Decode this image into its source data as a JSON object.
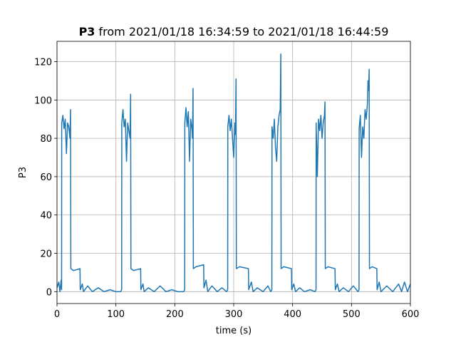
{
  "chart_data": {
    "type": "line",
    "title_parameter": "P3",
    "title": "from 2021/01/18 16:34:59 to 2021/01/18 16:44:59",
    "x_label": "time (s)",
    "y_label": "P3",
    "xlim": [
      0,
      600
    ],
    "xticks": [
      0,
      100,
      200,
      300,
      400,
      500,
      600
    ],
    "ylim": [
      -6.2,
      130.6
    ],
    "yticks": [
      0,
      20,
      40,
      60,
      80,
      100,
      120
    ],
    "grid": true,
    "series": [
      {
        "name": "P3",
        "color": "#1f77b4",
        "x": [
          0,
          3,
          5,
          7,
          7.8,
          8,
          10,
          12,
          14,
          16,
          18,
          20,
          22,
          23,
          23.5,
          28,
          39,
          39.5,
          43,
          45,
          52,
          60,
          70,
          80,
          90,
          100,
          108,
          109.8,
          110,
          112,
          114,
          116,
          118,
          120,
          122,
          124,
          125,
          125.5,
          130,
          142,
          142.5,
          146,
          148,
          155,
          165,
          175,
          185,
          195,
          205,
          215,
          216.8,
          217,
          219,
          221,
          223,
          225,
          227,
          229,
          230,
          231,
          231.5,
          236,
          249,
          249.5,
          253,
          256,
          263,
          272,
          280,
          288,
          289.8,
          290,
          292,
          294,
          296,
          298,
          300,
          302,
          303,
          304,
          304.5,
          310,
          325,
          325.5,
          330,
          333,
          340,
          350,
          358,
          363,
          364.8,
          365,
          367,
          369,
          371,
          373,
          375,
          377,
          379,
          380,
          380.5,
          385,
          398,
          398.5,
          402,
          405,
          412,
          420,
          430,
          438,
          439.8,
          440,
          442,
          444,
          446,
          448,
          450,
          452,
          454,
          455,
          455.5,
          460,
          472,
          472.5,
          476,
          479,
          486,
          495,
          503,
          511,
          512.8,
          513,
          515,
          517,
          519,
          521,
          523,
          525,
          527,
          528,
          529,
          530,
          530.5,
          535,
          543,
          543.5,
          547,
          550,
          560,
          570,
          580,
          585,
          590,
          595,
          600
        ],
        "values": [
          2,
          5,
          0,
          6,
          1,
          88,
          92,
          85,
          90,
          72,
          88,
          86,
          80,
          95,
          12,
          11,
          12,
          1,
          4,
          0,
          3,
          0,
          2,
          0,
          1,
          0,
          0,
          1,
          88,
          95,
          86,
          90,
          68,
          88,
          84,
          80,
          103,
          12,
          11,
          12,
          1,
          4,
          0,
          2,
          0,
          3,
          0,
          1,
          0,
          0,
          1,
          88,
          96,
          86,
          94,
          68,
          90,
          85,
          80,
          106,
          12,
          13,
          14,
          2,
          6,
          0,
          3,
          0,
          2,
          0,
          1,
          86,
          92,
          84,
          90,
          80,
          70,
          88,
          82,
          111,
          12,
          13,
          12,
          1,
          5,
          0,
          2,
          0,
          3,
          0,
          1,
          86,
          80,
          90,
          75,
          68,
          86,
          92,
          95,
          124,
          12,
          13,
          12,
          1,
          4,
          0,
          2,
          0,
          1,
          0,
          1,
          88,
          60,
          90,
          84,
          92,
          80,
          88,
          92,
          99,
          12,
          13,
          12,
          1,
          4,
          0,
          2,
          0,
          3,
          0,
          1,
          85,
          92,
          70,
          86,
          80,
          95,
          90,
          98,
          110,
          105,
          116,
          12,
          13,
          12,
          1,
          5,
          0,
          3,
          0,
          4,
          0,
          5,
          0,
          4
        ]
      }
    ]
  }
}
